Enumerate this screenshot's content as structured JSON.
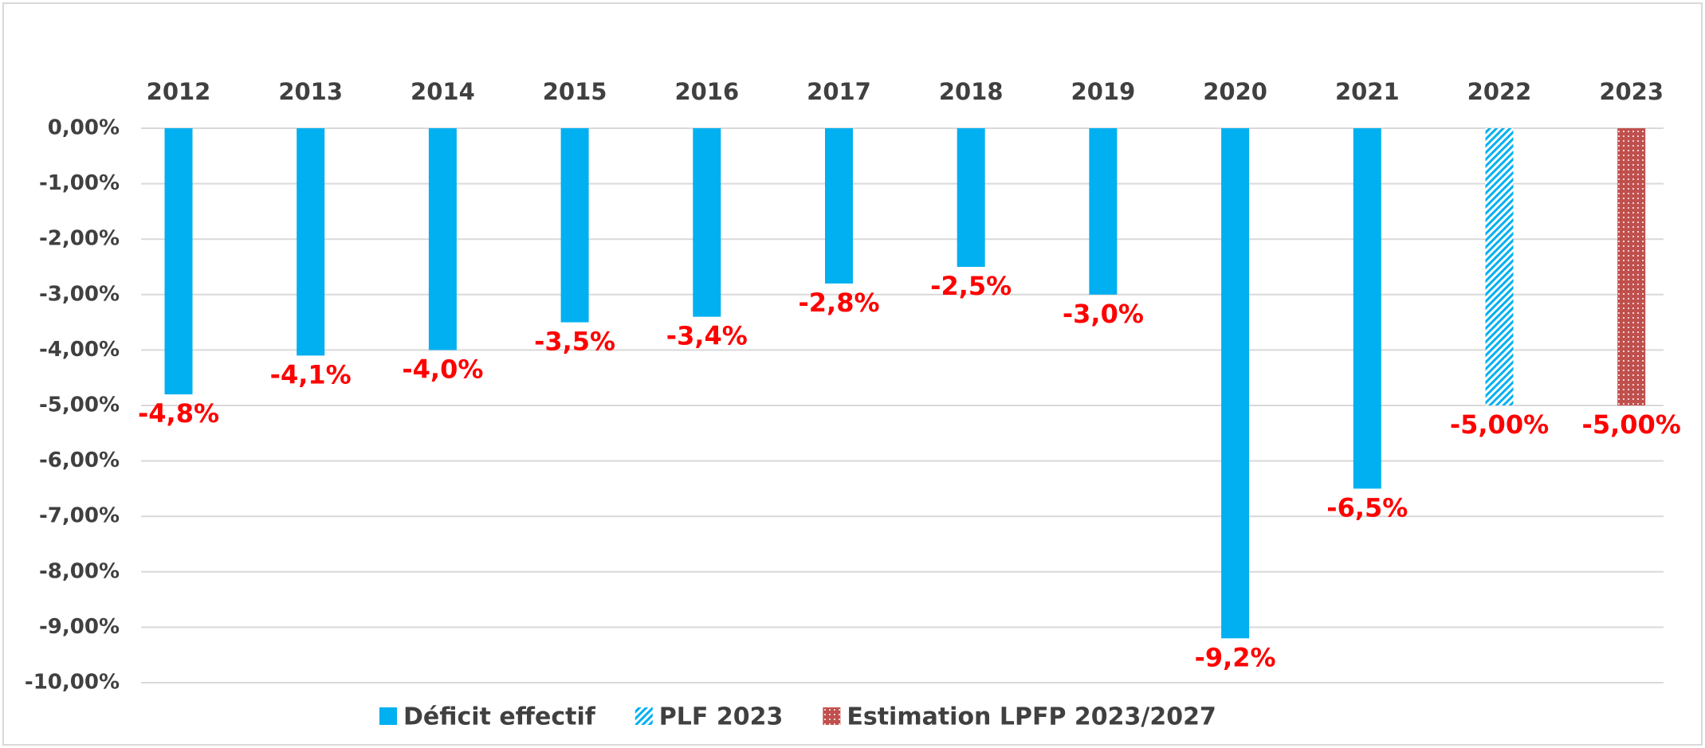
{
  "chart_data": {
    "type": "bar",
    "categories": [
      "2012",
      "2013",
      "2014",
      "2015",
      "2016",
      "2017",
      "2018",
      "2019",
      "2020",
      "2021",
      "2022",
      "2023"
    ],
    "series": [
      {
        "name": "Déficit effectif",
        "color": "#00b0f0",
        "pattern": "solid",
        "values": [
          -4.8,
          -4.1,
          -4.0,
          -3.5,
          -3.4,
          -2.8,
          -2.5,
          -3.0,
          -9.2,
          -6.5,
          null,
          null
        ],
        "value_labels": [
          "-4,8%",
          "-4,1%",
          "-4,0%",
          "-3,5%",
          "-3,4%",
          "-2,8%",
          "-2,5%",
          "-3,0%",
          "-9,2%",
          "-6,5%",
          null,
          null
        ]
      },
      {
        "name": "PLF 2023",
        "color": "#00b0f0",
        "pattern": "hatch",
        "values": [
          null,
          null,
          null,
          null,
          null,
          null,
          null,
          null,
          null,
          null,
          -5.0,
          null
        ],
        "value_labels": [
          null,
          null,
          null,
          null,
          null,
          null,
          null,
          null,
          null,
          null,
          "-5,00%",
          null
        ]
      },
      {
        "name": "Estimation LPFP 2023/2027",
        "color": "#c0504d",
        "pattern": "dots",
        "values": [
          null,
          null,
          null,
          null,
          null,
          null,
          null,
          null,
          null,
          null,
          null,
          -5.0
        ],
        "value_labels": [
          null,
          null,
          null,
          null,
          null,
          null,
          null,
          null,
          null,
          null,
          null,
          "-5,00%"
        ]
      }
    ],
    "ylim": [
      -10,
      0
    ],
    "yticks": [
      {
        "value": 0,
        "label": "0,00%"
      },
      {
        "value": -1,
        "label": "-1,00%"
      },
      {
        "value": -2,
        "label": "-2,00%"
      },
      {
        "value": -3,
        "label": "-3,00%"
      },
      {
        "value": -4,
        "label": "-4,00%"
      },
      {
        "value": -5,
        "label": "-5,00%"
      },
      {
        "value": -6,
        "label": "-6,00%"
      },
      {
        "value": -7,
        "label": "-7,00%"
      },
      {
        "value": -8,
        "label": "-8,00%"
      },
      {
        "value": -9,
        "label": "-9,00%"
      },
      {
        "value": -10,
        "label": "-10,00%"
      }
    ],
    "grid": true,
    "legend": "bottom"
  }
}
